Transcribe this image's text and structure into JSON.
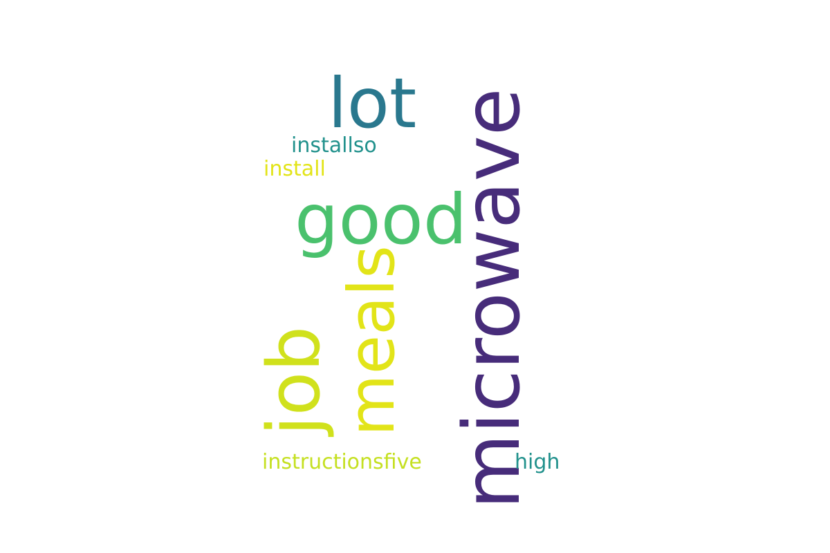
{
  "word_cloud": {
    "words": [
      {
        "key": "microwave",
        "text": "microwave",
        "color": "#472c7a",
        "orientation": "vertical"
      },
      {
        "key": "meals",
        "text": "meals",
        "color": "#e2e418",
        "orientation": "vertical"
      },
      {
        "key": "job",
        "text": "job",
        "color": "#d0e11c",
        "orientation": "vertical"
      },
      {
        "key": "lot",
        "text": "lot",
        "color": "#2a788e",
        "orientation": "horizontal"
      },
      {
        "key": "good",
        "text": "good",
        "color": "#4ac16d",
        "orientation": "horizontal"
      },
      {
        "key": "installso",
        "text": "installso",
        "color": "#21918c",
        "orientation": "horizontal"
      },
      {
        "key": "install",
        "text": "install",
        "color": "#e2e418",
        "orientation": "horizontal"
      },
      {
        "key": "instructionsfive",
        "text": "instructionsfive",
        "color": "#c5e021",
        "orientation": "horizontal"
      },
      {
        "key": "high",
        "text": "high",
        "color": "#21918c",
        "orientation": "horizontal"
      }
    ]
  }
}
